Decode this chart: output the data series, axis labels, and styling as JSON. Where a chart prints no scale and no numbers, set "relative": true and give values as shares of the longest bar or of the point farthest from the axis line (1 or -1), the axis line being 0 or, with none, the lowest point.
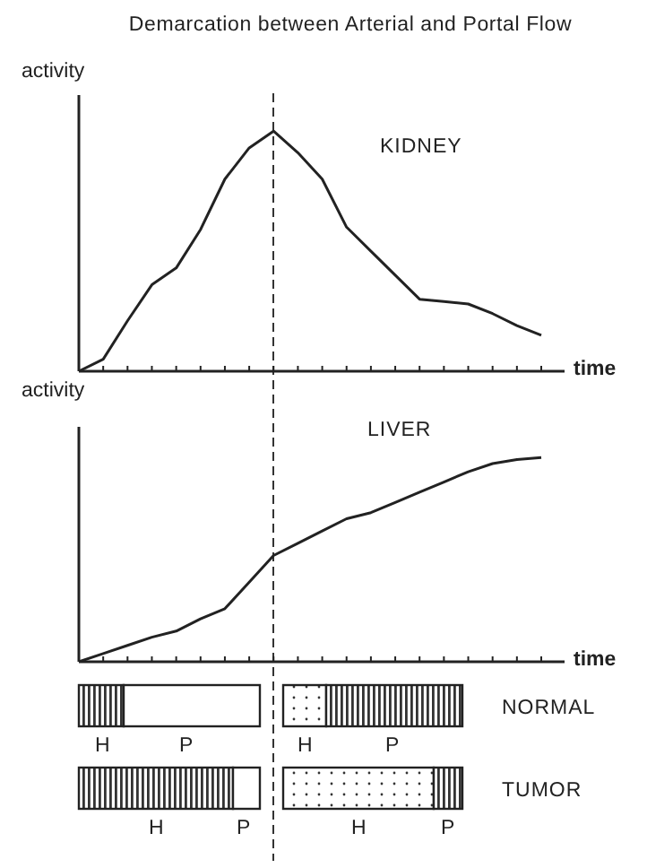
{
  "chart_data": [
    {
      "type": "line",
      "title": "Demarcation between Arterial and Portal Flow",
      "ylabel": "activity",
      "xlabel": "time",
      "annotations": [
        "KIDNEY"
      ],
      "relative": true,
      "marker": "none",
      "categories": [
        null,
        null,
        null,
        null,
        null,
        null,
        null,
        null,
        null,
        null,
        null,
        null,
        null,
        null,
        null,
        null,
        null,
        null,
        null,
        null
      ],
      "series": [
        {
          "color": "#222222",
          "values": [
            0,
            0.05,
            0.21,
            0.36,
            0.43,
            0.59,
            0.8,
            0.93,
            1,
            0.91,
            0.8,
            0.6,
            0.5,
            0.4,
            0.3,
            0.29,
            0.28,
            0.24,
            0.19,
            0.15
          ]
        }
      ]
    },
    {
      "type": "line",
      "ylabel": "activity",
      "xlabel": "time",
      "annotations": [
        "LIVER"
      ],
      "relative": true,
      "marker": "none",
      "categories": [
        null,
        null,
        null,
        null,
        null,
        null,
        null,
        null,
        null,
        null,
        null,
        null,
        null,
        null,
        null,
        null,
        null,
        null,
        null,
        null
      ],
      "series": [
        {
          "color": "#222222",
          "values": [
            0,
            0.04,
            0.08,
            0.12,
            0.15,
            0.21,
            0.26,
            0.39,
            0.52,
            0.58,
            0.64,
            0.7,
            0.73,
            0.78,
            0.83,
            0.88,
            0.93,
            0.97,
            0.99,
            1
          ]
        }
      ]
    },
    {
      "type": "other",
      "annotations": [
        "H",
        "P",
        "H",
        "P",
        "NORMAL",
        "H",
        "P",
        "H",
        "P",
        "TUMOR"
      ]
    }
  ]
}
